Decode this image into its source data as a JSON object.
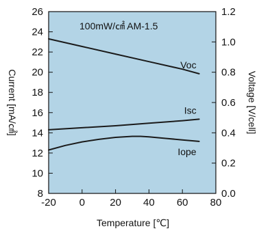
{
  "chart_data": {
    "type": "line",
    "annotation": "100mW/㎠  AM-1.5",
    "xlabel": "Temperature [℃]",
    "ylabel_left": "Current [mA/㎠]",
    "ylabel_right": "Voltage [V/cell]",
    "xlim": [
      -20,
      80
    ],
    "ylim_left": [
      8,
      26
    ],
    "ylim_right": [
      0.0,
      1.2
    ],
    "x_ticks": [
      "-20",
      "0",
      "20",
      "40",
      "60",
      "80"
    ],
    "y_left_ticks": [
      "8",
      "10",
      "12",
      "14",
      "16",
      "18",
      "20",
      "22",
      "24",
      "26"
    ],
    "y_right_ticks": [
      "0.0",
      "0.2",
      "0.4",
      "0.6",
      "0.8",
      "1.0",
      "1.2"
    ],
    "grid": false,
    "plot_background": "#b3d4e6",
    "line_color": "#1a1a1a",
    "series": [
      {
        "name": "Voc",
        "axis": "right",
        "x": [
          -20,
          0,
          20,
          40,
          60,
          70
        ],
        "y": [
          1.02,
          0.97,
          0.92,
          0.87,
          0.82,
          0.79
        ]
      },
      {
        "name": "Isc",
        "axis": "left",
        "x": [
          -20,
          0,
          20,
          40,
          60,
          70
        ],
        "y": [
          14.3,
          14.5,
          14.7,
          14.95,
          15.2,
          15.35
        ]
      },
      {
        "name": "Iope",
        "axis": "left",
        "x": [
          -20,
          -10,
          0,
          10,
          20,
          30,
          35,
          40,
          50,
          60,
          70
        ],
        "y": [
          12.3,
          12.75,
          13.1,
          13.35,
          13.55,
          13.65,
          13.65,
          13.6,
          13.45,
          13.3,
          13.15
        ]
      }
    ]
  }
}
